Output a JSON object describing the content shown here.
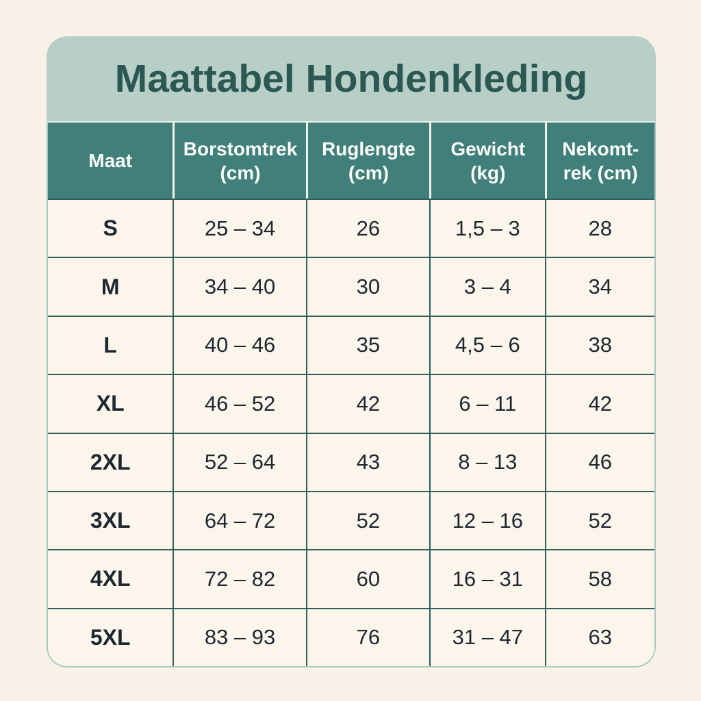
{
  "title": "Maattabel Hondenkleding",
  "chart_data": {
    "type": "table",
    "title": "Maattabel Hondenkleding",
    "columns": [
      "Maat",
      "Borstomtrek (cm)",
      "Ruglengte (cm)",
      "Gewicht (kg)",
      "Nekomt-rek (cm)"
    ],
    "rows": [
      [
        "S",
        "25 – 34",
        "26",
        "1,5 – 3",
        "28"
      ],
      [
        "M",
        "34 – 40",
        "30",
        "3 – 4",
        "34"
      ],
      [
        "L",
        "40 – 46",
        "35",
        "4,5 – 6",
        "38"
      ],
      [
        "XL",
        "46 – 52",
        "42",
        "6 – 11",
        "42"
      ],
      [
        "2XL",
        "52 – 64",
        "43",
        "8 – 13",
        "46"
      ],
      [
        "3XL",
        "64 – 72",
        "52",
        "12 – 16",
        "52"
      ],
      [
        "4XL",
        "72 – 82",
        "60",
        "16 – 31",
        "58"
      ],
      [
        "5XL",
        "83 – 93",
        "76",
        "31 – 47",
        "63"
      ]
    ]
  },
  "colors": {
    "page_background": "#f7f1e7",
    "title_band": "#b7cfc6",
    "title_text": "#2b5852",
    "header_background": "#417f7a",
    "header_text": "#f8fbf8",
    "cell_background": "#fbf5ec",
    "cell_text": "#1c2730",
    "grid_line": "#2f5e5b",
    "header_divider": "#edf3ee",
    "card_border": "#a8c8c2"
  }
}
